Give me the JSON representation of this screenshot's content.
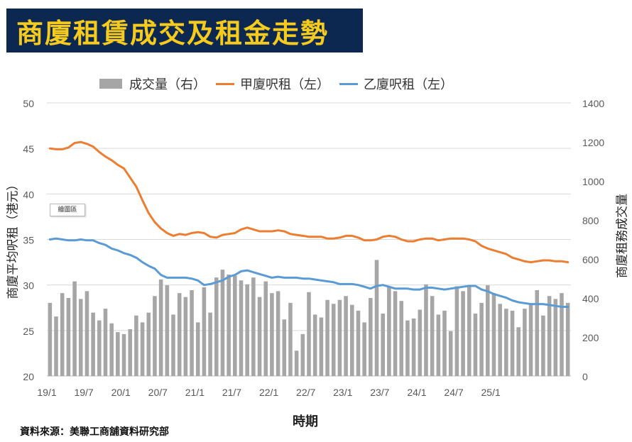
{
  "title": "商廈租賃成交及租金走勢",
  "badge": "繪圖區",
  "source": "資料來源：美聯工商舖資料研究部",
  "chart_data": {
    "type": "bar",
    "title": "商廈租賃成交及租金走勢",
    "xlabel": "時期",
    "ylabel_left": "商廈平均呎租（港元）",
    "ylabel_right": "商廈租務成交量",
    "ylim_left": [
      20,
      50
    ],
    "ylim_right": [
      0,
      1400
    ],
    "yticks_left": [
      "50",
      "45",
      "40",
      "35",
      "30",
      "25",
      "20"
    ],
    "yticks_right": [
      "1400",
      "1200",
      "1000",
      "800",
      "600",
      "400",
      "200",
      "0"
    ],
    "xtick_labels": [
      "19/1",
      "19/7",
      "20/1",
      "20/7",
      "21/1",
      "21/7",
      "22/1",
      "22/7",
      "23/1",
      "23/7",
      "24/1",
      "24/7",
      "25/1"
    ],
    "legend": [
      {
        "name": "成交量（右）",
        "kind": "bar",
        "color": "#a6a6a6"
      },
      {
        "name": "甲廈呎租（左）",
        "kind": "line",
        "color": "#ed7d31"
      },
      {
        "name": "乙廈呎租（左）",
        "kind": "line",
        "color": "#5b9bd5"
      }
    ],
    "series": [
      {
        "name": "成交量（右）",
        "axis": "right",
        "values": [
          375,
          305,
          425,
          400,
          485,
          395,
          435,
          325,
          285,
          345,
          270,
          225,
          215,
          240,
          310,
          275,
          325,
          410,
          495,
          465,
          315,
          425,
          405,
          440,
          275,
          455,
          325,
          505,
          545,
          520,
          515,
          490,
          470,
          505,
          405,
          485,
          425,
          435,
          290,
          375,
          130,
          215,
          430,
          315,
          300,
          390,
          370,
          390,
          410,
          365,
          335,
          275,
          400,
          595,
          320,
          455,
          435,
          385,
          285,
          295,
          340,
          470,
          410,
          315,
          335,
          230,
          460,
          435,
          460,
          320,
          375,
          465,
          425,
          370,
          345,
          335,
          250,
          345,
          365,
          440,
          310,
          410,
          395,
          425,
          375
        ]
      },
      {
        "name": "甲廈呎租（左）",
        "axis": "left",
        "values": [
          45.0,
          44.9,
          44.9,
          45.1,
          45.6,
          45.7,
          45.5,
          45.2,
          44.6,
          44.1,
          43.7,
          43.2,
          42.8,
          41.8,
          40.8,
          39.3,
          37.9,
          36.9,
          36.2,
          35.7,
          35.4,
          35.6,
          35.5,
          35.7,
          35.8,
          35.7,
          35.3,
          35.2,
          35.5,
          35.6,
          35.7,
          36.1,
          36.3,
          36.1,
          35.9,
          35.9,
          35.9,
          36.0,
          35.9,
          35.6,
          35.5,
          35.4,
          35.3,
          35.3,
          35.3,
          35.1,
          35.1,
          35.2,
          35.4,
          35.4,
          35.2,
          34.9,
          34.9,
          35.0,
          35.3,
          35.4,
          35.3,
          35.0,
          34.8,
          34.8,
          35.0,
          35.1,
          35.1,
          34.9,
          35.0,
          35.1,
          35.1,
          35.1,
          35.0,
          34.8,
          34.3,
          34.0,
          33.8,
          33.6,
          33.4,
          33.0,
          32.8,
          32.6,
          32.5,
          32.6,
          32.7,
          32.7,
          32.6,
          32.6,
          32.5
        ]
      },
      {
        "name": "乙廈呎租（左）",
        "axis": "left",
        "values": [
          35.0,
          35.1,
          35.0,
          34.9,
          34.9,
          35.0,
          34.9,
          34.9,
          34.6,
          34.4,
          34.0,
          33.8,
          33.5,
          33.3,
          33.0,
          32.5,
          32.1,
          31.8,
          31.1,
          30.8,
          30.8,
          30.8,
          30.8,
          30.7,
          30.5,
          30.0,
          30.1,
          30.3,
          30.5,
          30.9,
          31.1,
          31.5,
          31.6,
          31.4,
          31.2,
          31.0,
          30.8,
          30.9,
          30.8,
          30.8,
          30.8,
          30.7,
          30.7,
          30.6,
          30.5,
          30.4,
          30.3,
          30.1,
          30.1,
          30.1,
          30.0,
          29.8,
          29.6,
          29.9,
          30.0,
          29.8,
          29.6,
          29.6,
          29.6,
          29.5,
          29.5,
          29.7,
          29.7,
          29.6,
          29.5,
          29.6,
          29.7,
          29.8,
          29.9,
          29.9,
          29.5,
          29.3,
          29.0,
          28.8,
          28.6,
          28.3,
          28.1,
          28.0,
          27.9,
          27.9,
          27.9,
          27.8,
          27.7,
          27.6,
          27.6
        ]
      }
    ]
  }
}
